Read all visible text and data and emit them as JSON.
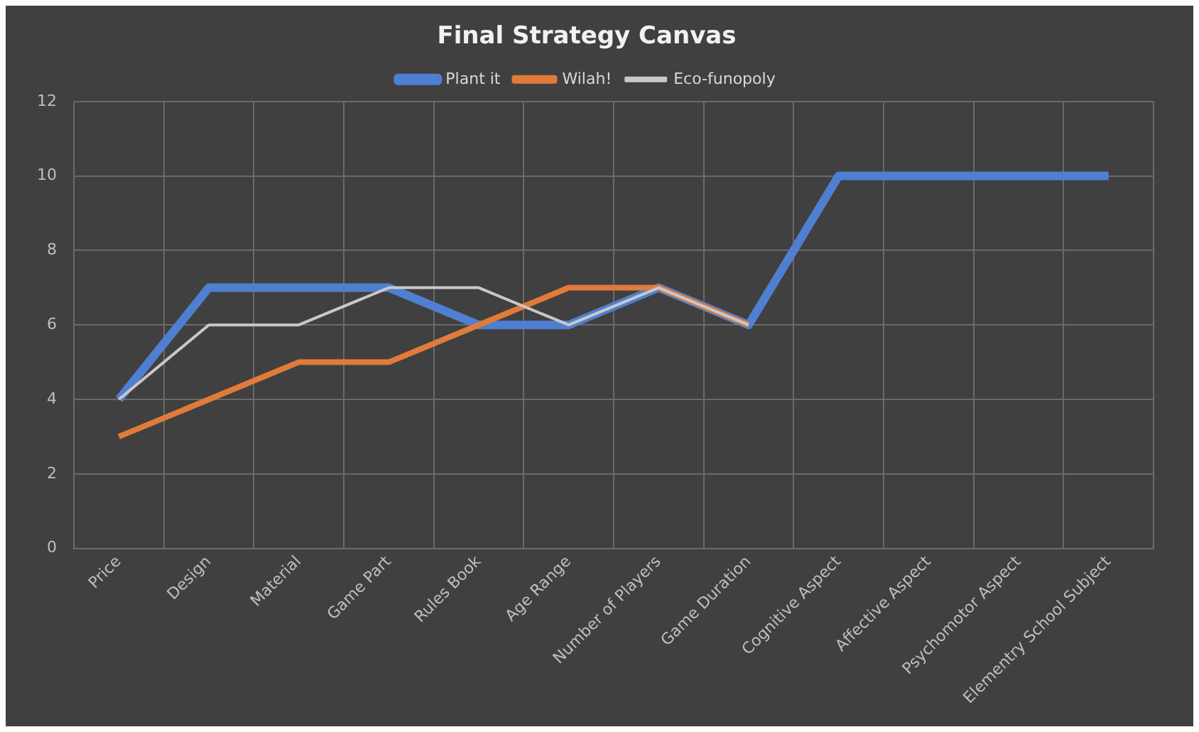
{
  "chart_data": {
    "type": "line",
    "title": "Final Strategy Canvas",
    "categories": [
      "Price",
      "Design",
      "Material",
      "Game Part",
      "Rules Book",
      "Age Range",
      "Number of Players",
      "Game Duration",
      "Cognitive Aspect",
      "Affective Aspect",
      "Psychomotor Aspect",
      "Elementry School Subject"
    ],
    "series": [
      {
        "name": "Plant it",
        "color": "#4f7fd0",
        "values": [
          4,
          7,
          7,
          7,
          6,
          6,
          7,
          6,
          10,
          10,
          10,
          10
        ]
      },
      {
        "name": "Wilah!",
        "color": "#e07b39",
        "values": [
          3,
          4,
          5,
          5,
          6,
          7,
          7,
          6,
          null,
          null,
          null,
          null
        ]
      },
      {
        "name": "Eco-funopoly",
        "color": "#c8c8c8",
        "values": [
          4,
          6,
          6,
          7,
          7,
          6,
          7,
          6,
          null,
          null,
          null,
          null
        ]
      }
    ],
    "ylim": [
      0,
      12
    ],
    "yticks": [
      0,
      2,
      4,
      6,
      8,
      10,
      12
    ],
    "grid": true,
    "legend": "top",
    "marker": "none",
    "line_style": "solid"
  }
}
